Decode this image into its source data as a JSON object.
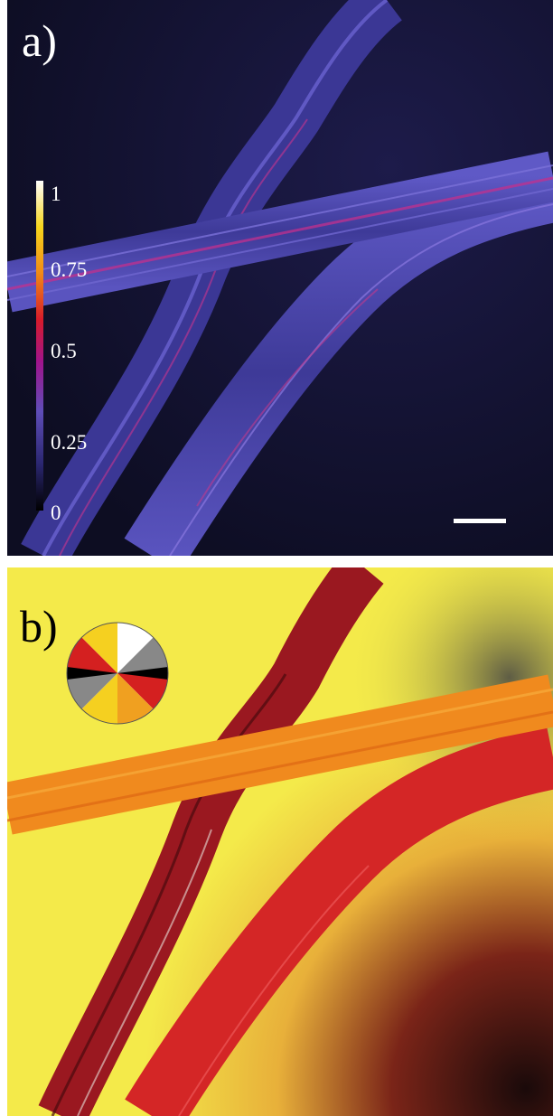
{
  "panel_a": {
    "label": "a)",
    "colorbar": {
      "ticks": [
        "1",
        "0.75",
        "0.5",
        "0.25",
        "0"
      ],
      "colormap": [
        "#000000",
        "#2a2670",
        "#5e4db8",
        "#a0148c",
        "#d81b2a",
        "#f08a16",
        "#f7d61c",
        "#ffffff"
      ]
    },
    "scale_bar": true,
    "colors": {
      "background": "#16163a",
      "fiber": "#4a44b0",
      "fiber_highlight": "#c0308a"
    }
  },
  "panel_b": {
    "label": "b)",
    "orientation_wheel": true,
    "colors": {
      "background": "#f4ea4a",
      "fiber_dark_red": "#a0141e",
      "fiber_red": "#d42626",
      "fiber_orange": "#f08a1e"
    }
  }
}
